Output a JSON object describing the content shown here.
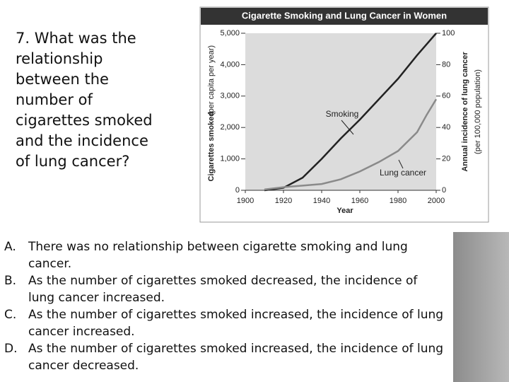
{
  "question": "7.  What was the relationship between the number of cigarettes smoked and the incidence of lung cancer?",
  "options": [
    {
      "label": "A.",
      "text": "There was no relationship between cigarette smoking and lung cancer."
    },
    {
      "label": "B.",
      "text": "As the number of cigarettes smoked decreased, the incidence of lung cancer increased."
    },
    {
      "label": "C.",
      "text": "As the number of cigarettes smoked increased, the incidence of lung cancer increased."
    },
    {
      "label": "D.",
      "text": "As the number of cigarettes smoked increased, the incidence of lung cancer decreased."
    }
  ],
  "chart_data": {
    "type": "line",
    "title": "Cigarette Smoking and Lung Cancer in Women",
    "xlabel": "Year",
    "ylabel": "Cigarettes smoked",
    "ylabel_note": "(per capita per year)",
    "y2label": "Annual incidence of lung cancer",
    "y2label_note": "(per 100,000 population)",
    "x": [
      1910,
      1920,
      1930,
      1940,
      1950,
      1960,
      1970,
      1980,
      1990,
      1995,
      2000
    ],
    "series": [
      {
        "name": "Smoking",
        "color": "#222222",
        "values": [
          0,
          80,
          400,
          1000,
          1650,
          2250,
          2900,
          3550,
          4300,
          4650,
          5000
        ]
      },
      {
        "name": "Lung cancer",
        "color": "#8a8a8a",
        "axis": "y2",
        "values": [
          0.5,
          2,
          3,
          4,
          7,
          12,
          18,
          25,
          37,
          48,
          58
        ]
      }
    ],
    "xlim": [
      1900,
      2000
    ],
    "xticks": [
      1900,
      1920,
      1940,
      1960,
      1980,
      2000
    ],
    "ylim": [
      0,
      5000
    ],
    "yticks": [
      0,
      {
        "value": 1000,
        "label": "1,000"
      },
      {
        "value": 2000,
        "label": "2,000"
      },
      {
        "value": 3000,
        "label": "3,000"
      },
      {
        "value": 4000,
        "label": "4,000"
      },
      {
        "value": 5000,
        "label": "5,000"
      }
    ],
    "y2lim": [
      0,
      100
    ],
    "y2ticks": [
      0,
      20,
      40,
      60,
      80,
      100
    ]
  }
}
